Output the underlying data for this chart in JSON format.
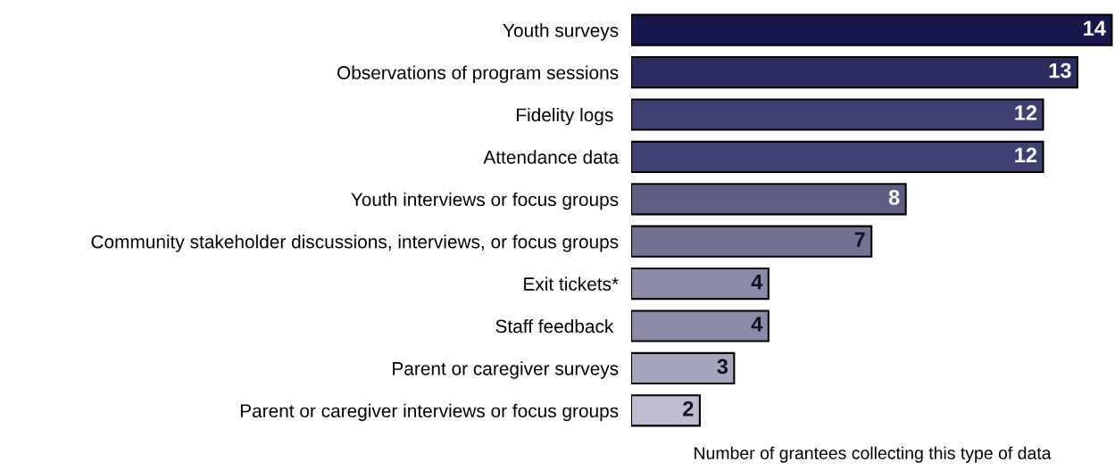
{
  "chart_data": {
    "type": "bar",
    "orientation": "horizontal",
    "xlabel": "Number of grantees collecting this type of data",
    "categories": [
      "Youth surveys",
      "Observations of program sessions",
      "Fidelity logs ",
      "Attendance data",
      "Youth interviews or focus groups",
      "Community stakeholder discussions, interviews, or focus groups",
      "Exit tickets*",
      "Staff feedback ",
      "Parent or caregiver surveys",
      "Parent or caregiver interviews or focus groups"
    ],
    "values": [
      14,
      13,
      12,
      12,
      8,
      7,
      4,
      4,
      3,
      2
    ],
    "colors": [
      "#17174c",
      "#2b2b5f",
      "#404070",
      "#404070",
      "#5e5e82",
      "#727293",
      "#8b8ba8",
      "#8b8ba8",
      "#a5a5bb",
      "#bdbdcd"
    ],
    "data_labels": true,
    "grid": false,
    "legend": false
  }
}
